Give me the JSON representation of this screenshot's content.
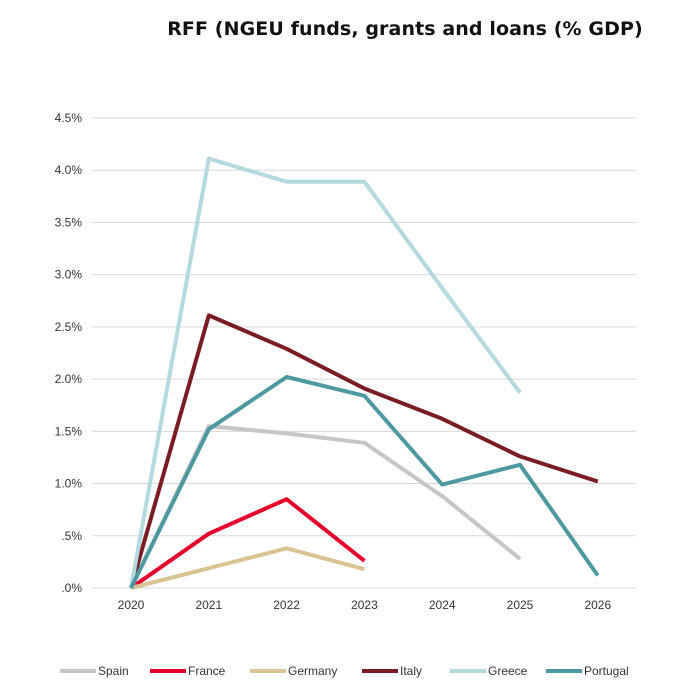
{
  "chart_data": {
    "type": "line",
    "title": "RFF (NGEU funds, grants and loans (% GDP)",
    "xlabel": "",
    "ylabel": "",
    "x": [
      "2020",
      "2021",
      "2022",
      "2023",
      "2024",
      "2025",
      "2026"
    ],
    "ylim": [
      0,
      4.5
    ],
    "yticks": [
      {
        "value": 0,
        "label": ".0%"
      },
      {
        "value": 0.5,
        "label": ".5%"
      },
      {
        "value": 1.0,
        "label": "1.0%"
      },
      {
        "value": 1.5,
        "label": "1.5%"
      },
      {
        "value": 2.0,
        "label": "2.0%"
      },
      {
        "value": 2.5,
        "label": "2.5%"
      },
      {
        "value": 3.0,
        "label": "3.0%"
      },
      {
        "value": 3.5,
        "label": "3.5%"
      },
      {
        "value": 4.0,
        "label": "4.0%"
      },
      {
        "value": 4.5,
        "label": "4.5%"
      }
    ],
    "grid": true,
    "legend_position": "bottom",
    "series": [
      {
        "name": "Spain",
        "color": "#c7c5c5",
        "values": [
          0.0,
          1.55,
          1.48,
          1.39,
          0.88,
          0.28,
          null
        ]
      },
      {
        "name": "France",
        "color": "#e4002b",
        "values": [
          0.0,
          0.52,
          0.85,
          0.26,
          null,
          null,
          null
        ]
      },
      {
        "name": "Germany",
        "color": "#d9c393",
        "values": [
          0.0,
          0.19,
          0.38,
          0.18,
          null,
          null,
          null
        ]
      },
      {
        "name": "Italy",
        "color": "#7a1c23",
        "values": [
          0.0,
          2.61,
          2.29,
          1.91,
          1.62,
          1.26,
          1.02
        ]
      },
      {
        "name": "Greece",
        "color": "#b4d9de",
        "values": [
          0.0,
          4.11,
          3.89,
          3.89,
          2.87,
          1.87,
          null
        ]
      },
      {
        "name": "Portugal",
        "color": "#4e99a1",
        "values": [
          0.0,
          1.52,
          2.02,
          1.84,
          0.99,
          1.18,
          0.12
        ]
      }
    ]
  }
}
